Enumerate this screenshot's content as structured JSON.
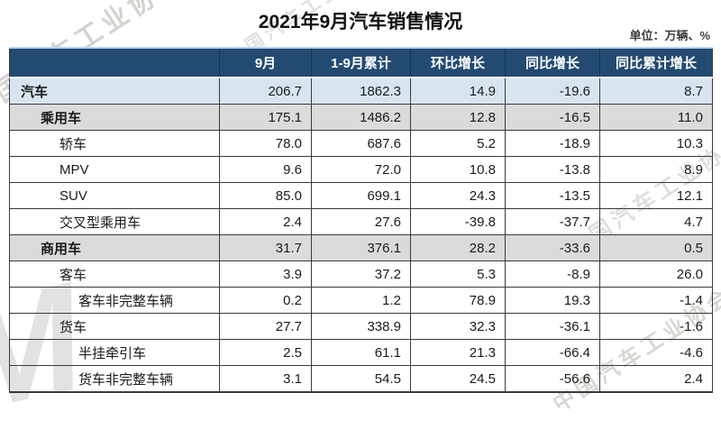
{
  "page": {
    "title": "2021年9月汽车销售情况",
    "unit_label": "单位：万辆、%"
  },
  "watermark": {
    "text": "中国汽车工业协会",
    "logo_text": "M"
  },
  "colors": {
    "header_bg": "#234b72",
    "header_text": "#ffffff",
    "total_row_bg": "#d8e5f1",
    "group_row_bg": "#dbdbdb",
    "border": "#3a3a3a",
    "top_rule": "#b9d3ea"
  },
  "chart_data": {
    "type": "table",
    "title": "2021年9月汽车销售情况",
    "unit": "万辆、%",
    "columns": [
      "",
      "9月",
      "1-9月累计",
      "环比增长",
      "同比增长",
      "同比累计增长"
    ],
    "rows": [
      {
        "label": "汽车",
        "indent": 0,
        "style": "total",
        "values": [
          "206.7",
          "1862.3",
          "14.9",
          "-19.6",
          "8.7"
        ]
      },
      {
        "label": "乘用车",
        "indent": 1,
        "style": "group",
        "values": [
          "175.1",
          "1486.2",
          "12.8",
          "-16.5",
          "11.0"
        ]
      },
      {
        "label": "轿车",
        "indent": 2,
        "style": "plain",
        "values": [
          "78.0",
          "687.6",
          "5.2",
          "-18.9",
          "10.3"
        ]
      },
      {
        "label": "MPV",
        "indent": 2,
        "style": "plain",
        "values": [
          "9.6",
          "72.0",
          "10.8",
          "-13.8",
          "8.9"
        ]
      },
      {
        "label": "SUV",
        "indent": 2,
        "style": "plain",
        "values": [
          "85.0",
          "699.1",
          "24.3",
          "-13.5",
          "12.1"
        ]
      },
      {
        "label": "交叉型乘用车",
        "indent": 2,
        "style": "plain",
        "values": [
          "2.4",
          "27.6",
          "-39.8",
          "-37.7",
          "4.7"
        ]
      },
      {
        "label": "商用车",
        "indent": 1,
        "style": "group",
        "values": [
          "31.7",
          "376.1",
          "28.2",
          "-33.6",
          "0.5"
        ]
      },
      {
        "label": "客车",
        "indent": 2,
        "style": "plain",
        "values": [
          "3.9",
          "37.2",
          "5.3",
          "-8.9",
          "26.0"
        ]
      },
      {
        "label": "客车非完整车辆",
        "indent": 3,
        "style": "plain",
        "values": [
          "0.2",
          "1.2",
          "78.9",
          "19.3",
          "-1.4"
        ]
      },
      {
        "label": "货车",
        "indent": 2,
        "style": "plain",
        "values": [
          "27.7",
          "338.9",
          "32.3",
          "-36.1",
          "-1.6"
        ]
      },
      {
        "label": "半挂牵引车",
        "indent": 3,
        "style": "plain",
        "values": [
          "2.5",
          "61.1",
          "21.3",
          "-66.4",
          "-4.6"
        ]
      },
      {
        "label": "货车非完整车辆",
        "indent": 3,
        "style": "plain",
        "values": [
          "3.1",
          "54.5",
          "24.5",
          "-56.6",
          "2.4"
        ]
      }
    ]
  }
}
